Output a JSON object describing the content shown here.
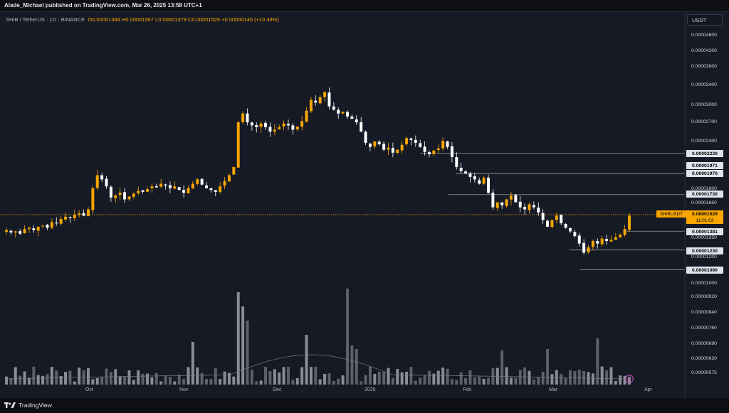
{
  "header": {
    "publisher": "Alade_Michael published on TradingView.com, Mar 26, 2025 13:58 UTC+1"
  },
  "symbol": {
    "name": "SHIB / TetherUS · 1D · BINANCE",
    "open": "O0.00001384",
    "high": "H0.00001567",
    "low": "L0.00001379",
    "close": "C0.00001529",
    "change": "+0.00000145 (+10.48%)"
  },
  "currency_button": "USDT",
  "price_axis": [
    "0.00004600",
    "0.00004200",
    "0.00003800",
    "0.00003400",
    "0.00003000",
    "0.00002700",
    "0.00002400",
    "0.00001800",
    "0.00001650",
    "0.00001350",
    "0.00001200",
    "0.00001000",
    "0.00000920",
    "0.00000840",
    "0.00000760",
    "0.00000690",
    "0.00000630",
    "0.00000575"
  ],
  "levels": [
    "0.00002230",
    "0.00001971",
    "0.00001970",
    "0.00001730",
    "0.00001381",
    "0.00001230",
    "0.00001090"
  ],
  "current_price": {
    "symbol": "SHIBUSDT",
    "price": "0.00001529",
    "countdown": "11:01:03"
  },
  "time_axis": [
    "Oct",
    "Nov",
    "Dec",
    "2025",
    "Feb",
    "Mar",
    "Apr"
  ],
  "footer": {
    "logo_text": "TradingView"
  },
  "colors": {
    "up": "#f7a600",
    "down": "#ffffff",
    "background": "#161a25"
  },
  "icons": {
    "logo": "tradingview-logo-icon",
    "replay": "lightning-icon"
  },
  "chart_data": {
    "type": "candlestick",
    "symbol": "SHIB / TetherUS",
    "interval": "1D",
    "exchange": "BINANCE",
    "y_scale": "log",
    "last": {
      "open": 1.384e-05,
      "high": 1.567e-05,
      "low": 1.379e-05,
      "close": 1.529e-05
    },
    "horizontal_levels": [
      2.23e-05,
      1.971e-05,
      1.97e-05,
      1.73e-05,
      1.381e-05,
      1.23e-05,
      1.09e-05
    ],
    "closes": [
      1.39e-05,
      1.37e-05,
      1.38e-05,
      1.36e-05,
      1.4e-05,
      1.41e-05,
      1.39e-05,
      1.42e-05,
      1.43e-05,
      1.41e-05,
      1.46e-05,
      1.45e-05,
      1.49e-05,
      1.51e-05,
      1.5e-05,
      1.53e-05,
      1.54e-05,
      1.52e-05,
      1.58e-05,
      1.8e-05,
      1.95e-05,
      1.9e-05,
      1.82e-05,
      1.7e-05,
      1.72e-05,
      1.75e-05,
      1.68e-05,
      1.71e-05,
      1.74e-05,
      1.77e-05,
      1.76e-05,
      1.79e-05,
      1.82e-05,
      1.81e-05,
      1.85e-05,
      1.83e-05,
      1.8e-05,
      1.82e-05,
      1.78e-05,
      1.75e-05,
      1.8e-05,
      1.85e-05,
      1.9e-05,
      1.84e-05,
      1.8e-05,
      1.78e-05,
      1.76e-05,
      1.82e-05,
      1.88e-05,
      1.95e-05,
      2.05e-05,
      2.7e-05,
      2.85e-05,
      2.7e-05,
      2.65e-05,
      2.62e-05,
      2.68e-05,
      2.62e-05,
      2.55e-05,
      2.58e-05,
      2.62e-05,
      2.68e-05,
      2.65e-05,
      2.58e-05,
      2.63e-05,
      2.72e-05,
      2.9e-05,
      3.1e-05,
      3.05e-05,
      3.15e-05,
      3.25e-05,
      2.98e-05,
      2.92e-05,
      2.85e-05,
      2.88e-05,
      2.8e-05,
      2.76e-05,
      2.7e-05,
      2.55e-05,
      2.38e-05,
      2.32e-05,
      2.4e-05,
      2.36e-05,
      2.28e-05,
      2.31e-05,
      2.24e-05,
      2.28e-05,
      2.35e-05,
      2.45e-05,
      2.42e-05,
      2.38e-05,
      2.32e-05,
      2.25e-05,
      2.22e-05,
      2.27e-05,
      2.3e-05,
      2.41e-05,
      2.32e-05,
      2.18e-05,
      2.05e-05,
      2e-05,
      1.97e-05,
      1.93e-05,
      1.9e-05,
      1.85e-05,
      1.92e-05,
      1.75e-05,
      1.6e-05,
      1.65e-05,
      1.62e-05,
      1.68e-05,
      1.72e-05,
      1.65e-05,
      1.6e-05,
      1.58e-05,
      1.63e-05,
      1.6e-05,
      1.55e-05,
      1.48e-05,
      1.42e-05,
      1.48e-05,
      1.52e-05,
      1.45e-05,
      1.41e-05,
      1.38e-05,
      1.34e-05,
      1.28e-05,
      1.21e-05,
      1.25e-05,
      1.3e-05,
      1.28e-05,
      1.32e-05,
      1.3e-05,
      1.31e-05,
      1.33e-05,
      1.35e-05,
      1.4e-05,
      1.52e-05
    ]
  }
}
